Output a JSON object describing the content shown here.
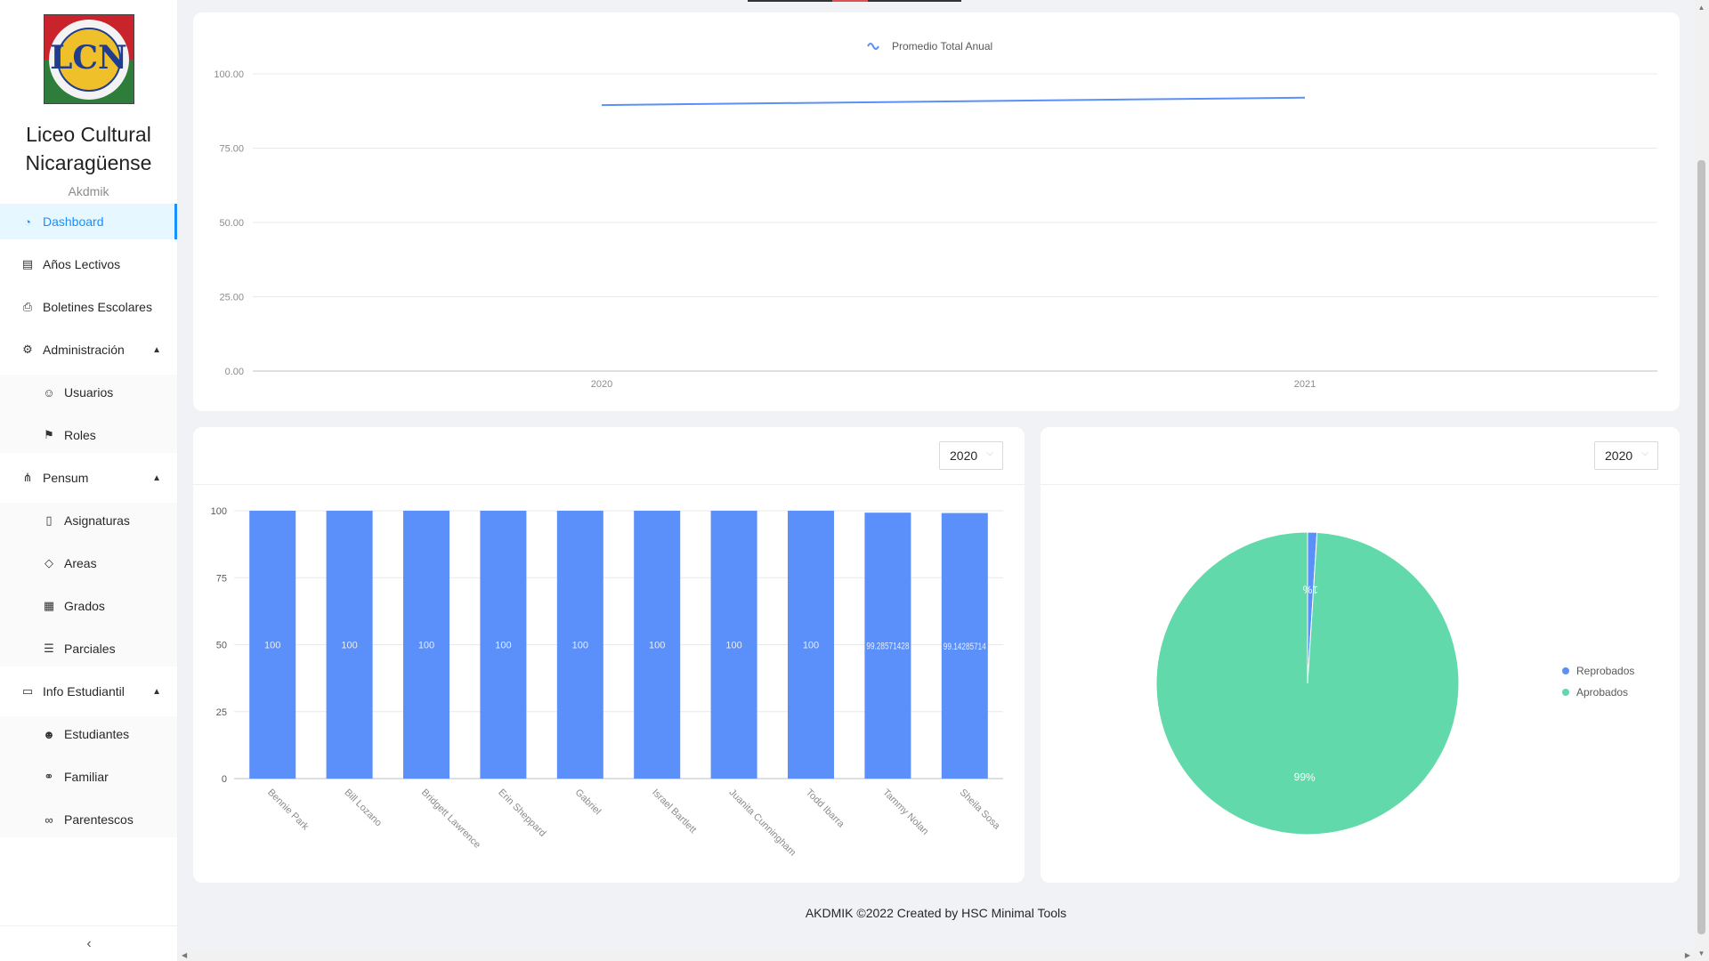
{
  "sidebar": {
    "school_name_line1": "Liceo Cultural",
    "school_name_line2": "Nicaragüense",
    "logo_text": "LCN",
    "app_name": "Akdmik",
    "items": [
      {
        "label": "Dashboard",
        "icon": "dashboard-icon",
        "active": true
      },
      {
        "label": "Años Lectivos",
        "icon": "calendar-icon"
      },
      {
        "label": "Boletines Escolares",
        "icon": "printer-icon"
      },
      {
        "label": "Administración",
        "icon": "control-icon",
        "expanded": true,
        "children": [
          {
            "label": "Usuarios",
            "icon": "user-icon"
          },
          {
            "label": "Roles",
            "icon": "flag-icon"
          }
        ]
      },
      {
        "label": "Pensum",
        "icon": "cluster-icon",
        "expanded": true,
        "children": [
          {
            "label": "Asignaturas",
            "icon": "book-icon"
          },
          {
            "label": "Areas",
            "icon": "tag-icon"
          },
          {
            "label": "Grados",
            "icon": "building-icon"
          },
          {
            "label": "Parciales",
            "icon": "list-icon"
          }
        ]
      },
      {
        "label": "Info Estudiantil",
        "icon": "folder-open-icon",
        "expanded": true,
        "children": [
          {
            "label": "Estudiantes",
            "icon": "student-icon"
          },
          {
            "label": "Familiar",
            "icon": "share-icon"
          },
          {
            "label": "Parentescos",
            "icon": "link-icon"
          }
        ]
      }
    ],
    "collapse_icon": "chevron-left-icon"
  },
  "line_card": {
    "chart_data": {
      "type": "line",
      "series": [
        {
          "name": "Promedio Total Anual",
          "color": "#5b8ff9",
          "values": [
            89.5,
            92.0
          ]
        }
      ],
      "categories": [
        "2020",
        "2021"
      ],
      "yticks": [
        "100.00",
        "75.00",
        "50.00",
        "25.00",
        "0.00"
      ],
      "ylim": [
        0,
        100
      ],
      "legend_position": "top-center"
    }
  },
  "bar_card": {
    "year_select": "2020",
    "chart_data": {
      "type": "bar",
      "color": "#5b8ff9",
      "categories": [
        "Bennie Park",
        "Bill Lozano",
        "Bridgett Lawrence",
        "Erin Sheppard",
        "Gabriel",
        "Israel Bartlett",
        "Juanita Cunningham",
        "Todd Ibarra",
        "Tammy Nolan",
        "Sheila Sosa"
      ],
      "values": [
        100,
        100,
        100,
        100,
        100,
        100,
        100,
        100,
        99.28571428,
        99.14285714
      ],
      "labels": [
        "100",
        "100",
        "100",
        "100",
        "100",
        "100",
        "100",
        "100",
        "99.28571428",
        "99.14285714"
      ],
      "yticks": [
        "100",
        "75",
        "50",
        "25",
        "0"
      ],
      "ylim": [
        0,
        100
      ]
    }
  },
  "pie_card": {
    "year_select": "2020",
    "chart_data": {
      "type": "pie",
      "slices": [
        {
          "name": "Reprobados",
          "value": 1,
          "label": "1%",
          "color": "#5b8ff9"
        },
        {
          "name": "Aprobados",
          "value": 99,
          "label": "99%",
          "color": "#61d9aa"
        }
      ],
      "legend_position": "right"
    }
  },
  "footer": {
    "text": "AKDMIK ©2022 Created by HSC Minimal Tools"
  }
}
